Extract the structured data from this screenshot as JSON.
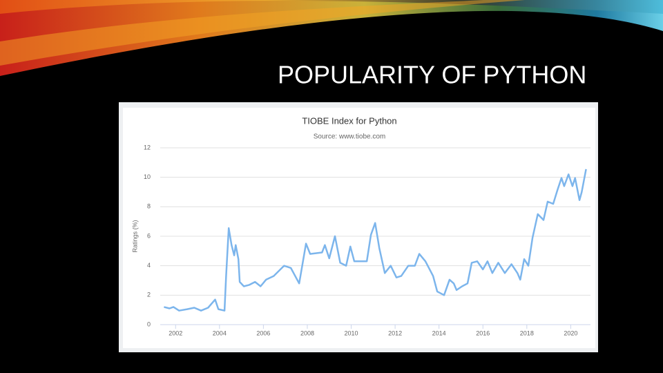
{
  "slide_title": "POPULARITY OF PYTHON",
  "chart_data": {
    "type": "line",
    "title": "TIOBE Index for Python",
    "subtitle": "Source: www.tiobe.com",
    "y_label": "Ratings (%)",
    "color": "#7cb5ec",
    "grid": true,
    "xlim": [
      2001.3,
      2020.9
    ],
    "xticks": [
      2002,
      2004,
      2006,
      2008,
      2010,
      2012,
      2014,
      2016,
      2018,
      2020
    ],
    "ylim": [
      0,
      12
    ],
    "yticks": [
      0,
      2,
      4,
      6,
      8,
      10,
      12
    ],
    "x": [
      2001.47,
      2001.72,
      2001.9,
      2002.16,
      2002.53,
      2002.85,
      2003.16,
      2003.48,
      2003.8,
      2003.95,
      2004.23,
      2004.3,
      2004.42,
      2004.55,
      2004.67,
      2004.74,
      2004.86,
      2004.92,
      2005.11,
      2005.36,
      2005.62,
      2005.87,
      2006.12,
      2006.47,
      2006.94,
      2007.25,
      2007.63,
      2007.94,
      2008.13,
      2008.67,
      2008.8,
      2009.0,
      2009.26,
      2009.5,
      2009.77,
      2009.96,
      2010.14,
      2010.71,
      2010.9,
      2011.09,
      2011.28,
      2011.53,
      2011.8,
      2012.06,
      2012.28,
      2012.6,
      2012.9,
      2013.1,
      2013.38,
      2013.73,
      2013.92,
      2014.23,
      2014.48,
      2014.67,
      2014.8,
      2015.05,
      2015.3,
      2015.49,
      2015.74,
      2016.0,
      2016.21,
      2016.43,
      2016.7,
      2017.0,
      2017.3,
      2017.57,
      2017.7,
      2017.88,
      2018.07,
      2018.26,
      2018.5,
      2018.76,
      2018.95,
      2019.2,
      2019.4,
      2019.58,
      2019.7,
      2019.9,
      2020.08,
      2020.2,
      2020.4,
      2020.5,
      2020.7
    ],
    "values": [
      1.2,
      1.1,
      1.2,
      0.95,
      1.05,
      1.15,
      0.95,
      1.15,
      1.7,
      1.05,
      0.95,
      3.3,
      6.55,
      5.4,
      4.7,
      5.4,
      4.45,
      2.9,
      2.6,
      2.7,
      2.9,
      2.6,
      3.05,
      3.3,
      4.0,
      3.85,
      2.8,
      5.5,
      4.8,
      4.9,
      5.4,
      4.5,
      6.0,
      4.2,
      4.0,
      5.3,
      4.3,
      4.3,
      6.1,
      6.9,
      5.2,
      3.5,
      4.0,
      3.2,
      3.3,
      4.0,
      4.0,
      4.8,
      4.3,
      3.3,
      2.25,
      2.0,
      3.05,
      2.8,
      2.35,
      2.6,
      2.8,
      4.2,
      4.3,
      3.75,
      4.3,
      3.5,
      4.2,
      3.5,
      4.1,
      3.5,
      3.05,
      4.45,
      4.0,
      5.9,
      7.5,
      7.1,
      8.35,
      8.2,
      9.15,
      9.95,
      9.4,
      10.2,
      9.4,
      9.95,
      8.45,
      9.0,
      10.55
    ]
  }
}
